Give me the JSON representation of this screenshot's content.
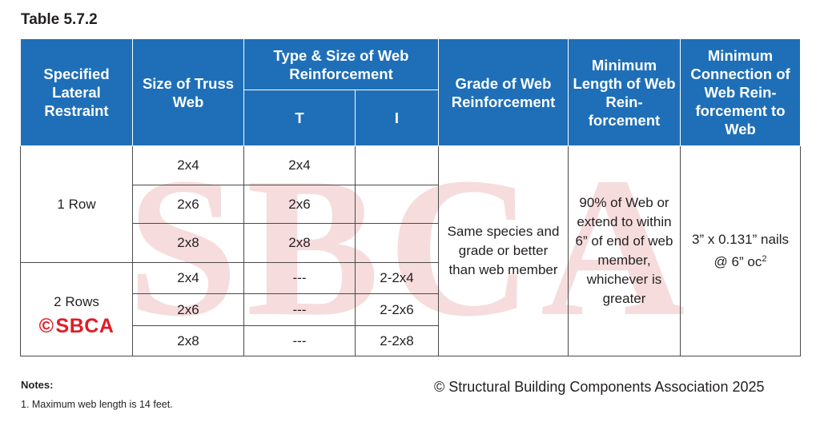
{
  "title": "Table 5.7.2",
  "watermark_text": "SBCA",
  "headers": {
    "restraint": "Specified Lateral Restraint",
    "web_size": "Size of Truss Web",
    "type_size": "Type & Size of Web Reinforcement",
    "t": "T",
    "i": "I",
    "grade": "Grade of Web Reinforcement",
    "min_length": "Minimum Length of Web Rein-forcement",
    "min_connection": "Minimum Connection of Web Rein-forcement to Web"
  },
  "groups": [
    {
      "label": "1 Row",
      "rows": [
        {
          "size": "2x4",
          "t": "2x4",
          "i": ""
        },
        {
          "size": "2x6",
          "t": "2x6",
          "i": ""
        },
        {
          "size": "2x8",
          "t": "2x8",
          "i": ""
        }
      ]
    },
    {
      "label": "2 Rows",
      "rows": [
        {
          "size": "2x4",
          "t": "---",
          "i": "2-2x4"
        },
        {
          "size": "2x6",
          "t": "---",
          "i": "2-2x6"
        },
        {
          "size": "2x8",
          "t": "---",
          "i": "2-2x8"
        }
      ]
    }
  ],
  "grade_text": "Same species and grade or better than web member",
  "length_text": "90% of Web or extend to within 6” of end of web member, whichever is greater",
  "connection_text": "3” x 0.131” nails @ 6” oc",
  "connection_sup": "2",
  "logo": {
    "symbol": "©",
    "text": "SBCA"
  },
  "notes": {
    "title": "Notes:",
    "items": [
      "1. Maximum web length is 14 feet."
    ]
  },
  "copyright": "© Structural Building Components Association 2025",
  "colors": {
    "header_bg": "#1e6fb8",
    "watermark": "#f6dcdd",
    "logo": "#e31b23"
  }
}
